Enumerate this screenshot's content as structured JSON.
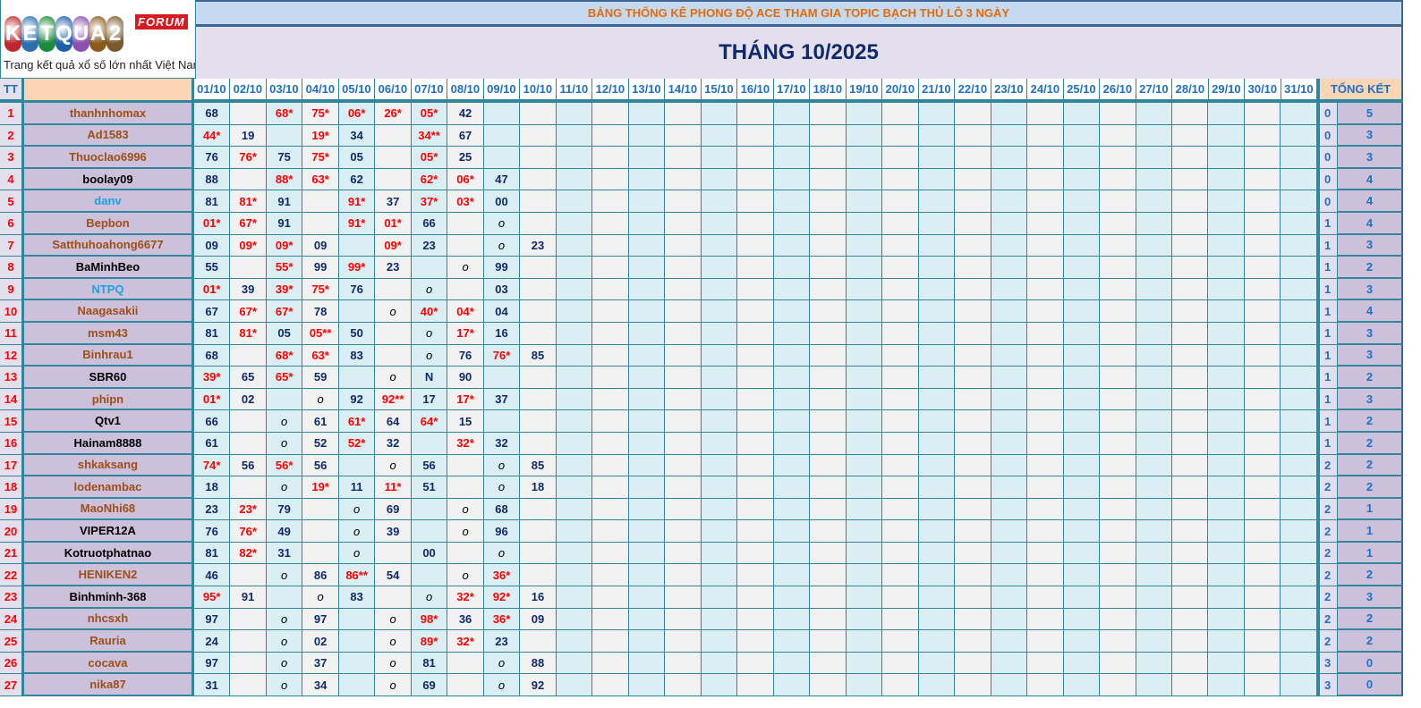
{
  "logo": {
    "text": "KETQUA2",
    "badge": "FORUM",
    "tagline": "Trang kết quả xổ số lớn nhất Việt Nam"
  },
  "banner": "BẢNG THỐNG KÊ PHONG ĐỘ ACE THAM GIA TOPIC BẠCH THỦ LÔ 3 NGÀY",
  "month_title": "THÁNG 10/2025",
  "headers": {
    "tt": "TT",
    "name": "",
    "summary": "TỔNG KẾT",
    "days": [
      "01/10",
      "02/10",
      "03/10",
      "04/10",
      "05/10",
      "06/10",
      "07/10",
      "08/10",
      "09/10",
      "10/10",
      "11/10",
      "12/10",
      "13/10",
      "14/10",
      "15/10",
      "16/10",
      "17/10",
      "18/10",
      "19/10",
      "20/10",
      "21/10",
      "22/10",
      "23/10",
      "24/10",
      "25/10",
      "26/10",
      "27/10",
      "28/10",
      "29/10",
      "30/10",
      "31/10"
    ]
  },
  "colors": {
    "name_brown": "#9c4f16",
    "name_black": "#000000",
    "name_blue": "#1ba1e2",
    "hit_red": "#ff0000",
    "border_teal": "#31869b"
  },
  "rows": [
    {
      "tt": "1",
      "name": "thanhnhomax",
      "color": "brown",
      "cells": [
        "68",
        "",
        "68*",
        "75*",
        "06*",
        "26*",
        "05*",
        "42",
        "",
        ""
      ],
      "s1": "0",
      "s2": "5"
    },
    {
      "tt": "2",
      "name": "Ad1583",
      "color": "brown",
      "cells": [
        "44*",
        "19",
        "",
        "19*",
        "34",
        "",
        "34**",
        "67",
        "",
        ""
      ],
      "s1": "0",
      "s2": "3"
    },
    {
      "tt": "3",
      "name": "Thuoclao6996",
      "color": "brown",
      "cells": [
        "76",
        "76*",
        "75",
        "75*",
        "05",
        "",
        "05*",
        "25",
        "",
        ""
      ],
      "s1": "0",
      "s2": "3"
    },
    {
      "tt": "4",
      "name": "boolay09",
      "color": "black",
      "cells": [
        "88",
        "",
        "88*",
        "63*",
        "62",
        "",
        "62*",
        "06*",
        "47",
        ""
      ],
      "s1": "0",
      "s2": "4"
    },
    {
      "tt": "5",
      "name": "danv",
      "color": "blue",
      "cells": [
        "81",
        "81*",
        "91",
        "",
        "91*",
        "37",
        "37*",
        "03*",
        "00",
        ""
      ],
      "s1": "0",
      "s2": "4"
    },
    {
      "tt": "6",
      "name": "Bepbon",
      "color": "brown",
      "cells": [
        "01*",
        "67*",
        "91",
        "",
        "91*",
        "01*",
        "66",
        "",
        "o",
        ""
      ],
      "s1": "1",
      "s2": "4"
    },
    {
      "tt": "7",
      "name": "Satthuhoahong6677",
      "color": "brown",
      "cells": [
        "09",
        "09*",
        "09*",
        "09",
        "",
        "09*",
        "23",
        "",
        "o",
        "23"
      ],
      "s1": "1",
      "s2": "3"
    },
    {
      "tt": "8",
      "name": "BaMinhBeo",
      "color": "black",
      "cells": [
        "55",
        "",
        "55*",
        "99",
        "99*",
        "23",
        "",
        "o",
        "99",
        ""
      ],
      "s1": "1",
      "s2": "2"
    },
    {
      "tt": "9",
      "name": "NTPQ",
      "color": "blue",
      "cells": [
        "01*",
        "39",
        "39*",
        "75*",
        "76",
        "",
        "o",
        "",
        "03",
        ""
      ],
      "s1": "1",
      "s2": "3"
    },
    {
      "tt": "10",
      "name": "Naagasakii",
      "color": "brown",
      "cells": [
        "67",
        "67*",
        "67*",
        "78",
        "",
        "o",
        "40*",
        "04*",
        "04",
        ""
      ],
      "s1": "1",
      "s2": "4"
    },
    {
      "tt": "11",
      "name": "msm43",
      "color": "brown",
      "cells": [
        "81",
        "81*",
        "05",
        "05**",
        "50",
        "",
        "o",
        "17*",
        "16",
        ""
      ],
      "s1": "1",
      "s2": "3"
    },
    {
      "tt": "12",
      "name": "Binhrau1",
      "color": "brown",
      "cells": [
        "68",
        "",
        "68*",
        "63*",
        "83",
        "",
        "o",
        "76",
        "76*",
        "85"
      ],
      "s1": "1",
      "s2": "3"
    },
    {
      "tt": "13",
      "name": "SBR60",
      "color": "black",
      "cells": [
        "39*",
        "65",
        "65*",
        "59",
        "",
        "o",
        "N",
        "90",
        "",
        ""
      ],
      "s1": "1",
      "s2": "2"
    },
    {
      "tt": "14",
      "name": "phipn",
      "color": "brown",
      "cells": [
        "01*",
        "02",
        "",
        "o",
        "92",
        "92**",
        "17",
        "17*",
        "37",
        ""
      ],
      "s1": "1",
      "s2": "3"
    },
    {
      "tt": "15",
      "name": "Qtv1",
      "color": "black",
      "cells": [
        "66",
        "",
        "o",
        "61",
        "61*",
        "64",
        "64*",
        "15",
        "",
        ""
      ],
      "s1": "1",
      "s2": "2"
    },
    {
      "tt": "16",
      "name": "Hainam8888",
      "color": "black",
      "cells": [
        "61",
        "",
        "o",
        "52",
        "52*",
        "32",
        "",
        "32*",
        "32",
        ""
      ],
      "s1": "1",
      "s2": "2"
    },
    {
      "tt": "17",
      "name": "shkaksang",
      "color": "brown",
      "cells": [
        "74*",
        "56",
        "56*",
        "56",
        "",
        "o",
        "56",
        "",
        "o",
        "85"
      ],
      "s1": "2",
      "s2": "2"
    },
    {
      "tt": "18",
      "name": "lodenambac",
      "color": "brown",
      "cells": [
        "18",
        "",
        "o",
        "19*",
        "11",
        "11*",
        "51",
        "",
        "o",
        "18"
      ],
      "s1": "2",
      "s2": "2"
    },
    {
      "tt": "19",
      "name": "MaoNhi68",
      "color": "brown",
      "cells": [
        "23",
        "23*",
        "79",
        "",
        "o",
        "69",
        "",
        "o",
        "68",
        ""
      ],
      "s1": "2",
      "s2": "1"
    },
    {
      "tt": "20",
      "name": "VIPER12A",
      "color": "black",
      "cells": [
        "76",
        "76*",
        "49",
        "",
        "o",
        "39",
        "",
        "o",
        "96",
        ""
      ],
      "s1": "2",
      "s2": "1"
    },
    {
      "tt": "21",
      "name": "Kotruotphatnao",
      "color": "black",
      "cells": [
        "81",
        "82*",
        "31",
        "",
        "o",
        "",
        "00",
        "",
        "o",
        ""
      ],
      "s1": "2",
      "s2": "1"
    },
    {
      "tt": "22",
      "name": "HENIKEN2",
      "color": "brown",
      "cells": [
        "46",
        "",
        "o",
        "86",
        "86**",
        "54",
        "",
        "o",
        "36*",
        ""
      ],
      "s1": "2",
      "s2": "2"
    },
    {
      "tt": "23",
      "name": "Binhminh-368",
      "color": "black",
      "cells": [
        "95*",
        "91",
        "",
        "o",
        "83",
        "",
        "o",
        "32*",
        "92*",
        "16"
      ],
      "s1": "2",
      "s2": "3"
    },
    {
      "tt": "24",
      "name": "nhcsxh",
      "color": "brown",
      "cells": [
        "97",
        "",
        "o",
        "97",
        "",
        "o",
        "98*",
        "36",
        "36*",
        "09"
      ],
      "s1": "2",
      "s2": "2"
    },
    {
      "tt": "25",
      "name": "Rauria",
      "color": "brown",
      "cells": [
        "24",
        "",
        "o",
        "02",
        "",
        "o",
        "89*",
        "32*",
        "23",
        ""
      ],
      "s1": "2",
      "s2": "2"
    },
    {
      "tt": "26",
      "name": "cocava",
      "color": "brown",
      "cells": [
        "97",
        "",
        "o",
        "37",
        "",
        "o",
        "81",
        "",
        "o",
        "88"
      ],
      "s1": "3",
      "s2": "0"
    },
    {
      "tt": "27",
      "name": "nika87",
      "color": "brown",
      "cells": [
        "31",
        "",
        "o",
        "34",
        "",
        "o",
        "69",
        "",
        "o",
        "92"
      ],
      "s1": "3",
      "s2": "0"
    }
  ]
}
